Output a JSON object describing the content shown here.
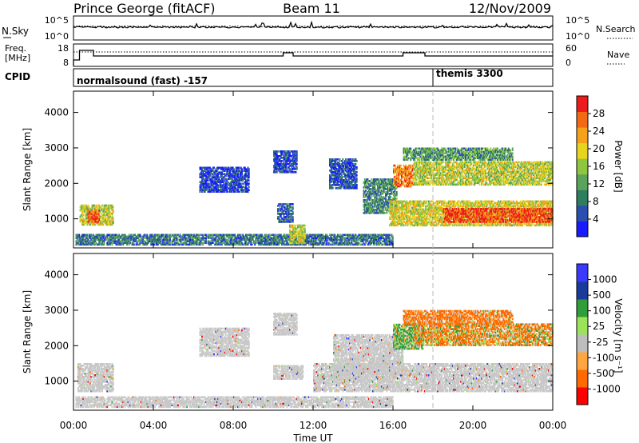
{
  "header": {
    "station": "Prince George (fitACF)",
    "beam": "Beam 11",
    "date": "12/Nov/2009"
  },
  "noise_panel": {
    "left_label": "N.Sky",
    "left_ticks": [
      "10^5",
      "10^0"
    ],
    "right_label": "N.Search",
    "right_ticks": [
      "10^5",
      "10^0"
    ]
  },
  "freq_panel": {
    "left_label_1": "Freq.",
    "left_label_2": "[MHz]",
    "left_ticks": [
      "18",
      "8"
    ],
    "right_label": "Nave",
    "right_ticks": [
      "60",
      "0"
    ]
  },
  "cpid_panel": {
    "label": "CPID",
    "modes": [
      {
        "name": "normalsound (fast) -157",
        "start_hour": 0
      },
      {
        "name": "themis 3300",
        "start_hour": 18
      }
    ]
  },
  "colors": {
    "scale": [
      "#1a1aff",
      "#2a4fb0",
      "#2e7d5f",
      "#5aa35a",
      "#8ec63f",
      "#e6d41e",
      "#f5a21a",
      "#f26a14",
      "#ee1b1b"
    ],
    "velocity": [
      "#ff0000",
      "#ff6a00",
      "#ffa640",
      "#bdbdbd",
      "#9be45a",
      "#2f9e3a",
      "#1a3a9c",
      "#3a3aff"
    ],
    "ground_scatter": "#c8c8c8"
  },
  "chart_data": [
    {
      "type": "heatmap",
      "title": "",
      "ylabel": "Slant Range [km]",
      "y_ticks": [
        "1000",
        "2000",
        "3000",
        "4000"
      ],
      "ylim": [
        180,
        4600
      ],
      "xlim_hours": [
        0,
        24
      ],
      "colorbar_label": "Power [dB]",
      "colorbar_ticks": [
        "4",
        "8",
        "12",
        "16",
        "20",
        "24",
        "28"
      ],
      "colorbar_range": [
        0,
        32
      ],
      "regions": [
        {
          "t0": 0.1,
          "t1": 16.0,
          "r0": 260,
          "r1": 560,
          "level": 0.25
        },
        {
          "t0": 0.3,
          "t1": 2.0,
          "r0": 820,
          "r1": 1400,
          "level": 0.55
        },
        {
          "t0": 0.7,
          "t1": 1.3,
          "r0": 900,
          "r1": 1250,
          "level": 0.85
        },
        {
          "t0": 6.3,
          "t1": 8.8,
          "r0": 1750,
          "r1": 2450,
          "level": 0.12
        },
        {
          "t0": 10.0,
          "t1": 11.2,
          "r0": 2300,
          "r1": 2900,
          "level": 0.15
        },
        {
          "t0": 10.2,
          "t1": 11.0,
          "r0": 900,
          "r1": 1400,
          "level": 0.2
        },
        {
          "t0": 10.8,
          "t1": 11.6,
          "r0": 300,
          "r1": 800,
          "level": 0.55
        },
        {
          "t0": 12.8,
          "t1": 14.2,
          "r0": 1850,
          "r1": 2700,
          "level": 0.15
        },
        {
          "t0": 14.5,
          "t1": 16.2,
          "r0": 1150,
          "r1": 2100,
          "level": 0.3
        },
        {
          "t0": 15.8,
          "t1": 24.0,
          "r0": 800,
          "r1": 1500,
          "level": 0.6
        },
        {
          "t0": 16.0,
          "t1": 17.0,
          "r0": 1900,
          "r1": 2500,
          "level": 0.8
        },
        {
          "t0": 17.0,
          "t1": 24.0,
          "r0": 1950,
          "r1": 2600,
          "level": 0.55
        },
        {
          "t0": 16.5,
          "t1": 22.0,
          "r0": 2650,
          "r1": 3000,
          "level": 0.35
        },
        {
          "t0": 18.5,
          "t1": 24.0,
          "r0": 900,
          "r1": 1300,
          "level": 0.9
        }
      ]
    },
    {
      "type": "heatmap",
      "title": "",
      "xlabel": "Time UT",
      "ylabel": "Slant Range [km]",
      "y_ticks": [
        "1000",
        "2000",
        "3000",
        "4000"
      ],
      "x_ticks": [
        "00:00",
        "04:00",
        "08:00",
        "12:00",
        "16:00",
        "20:00",
        "00:00"
      ],
      "ylim": [
        180,
        4600
      ],
      "xlim_hours": [
        0,
        24
      ],
      "colorbar_label": "Velocity [m s⁻¹]",
      "colorbar_ticks": [
        "1000",
        "500",
        "100",
        "25",
        "-25",
        "-100",
        "-500",
        "-1000"
      ],
      "colorbar_range": [
        -1000,
        1000
      ],
      "regions": [
        {
          "t0": 0.1,
          "t1": 16.0,
          "r0": 260,
          "r1": 560,
          "kind": "ground"
        },
        {
          "t0": 0.2,
          "t1": 2.0,
          "r0": 700,
          "r1": 1500,
          "kind": "ground"
        },
        {
          "t0": 6.3,
          "t1": 8.8,
          "r0": 1700,
          "r1": 2500,
          "kind": "ground"
        },
        {
          "t0": 10.0,
          "t1": 11.2,
          "r0": 2300,
          "r1": 2900,
          "kind": "ground"
        },
        {
          "t0": 10.0,
          "t1": 11.5,
          "r0": 1050,
          "r1": 1450,
          "kind": "ground"
        },
        {
          "t0": 12.0,
          "t1": 24.0,
          "r0": 700,
          "r1": 1500,
          "kind": "ground"
        },
        {
          "t0": 13.0,
          "t1": 16.5,
          "r0": 1200,
          "r1": 2300,
          "kind": "ground"
        },
        {
          "t0": 16.0,
          "t1": 17.5,
          "r0": 1900,
          "r1": 2600,
          "kind": "velocity",
          "vel": 150
        },
        {
          "t0": 17.0,
          "t1": 24.0,
          "r0": 2000,
          "r1": 2600,
          "kind": "velocity",
          "vel": -80
        },
        {
          "t0": 16.5,
          "t1": 22.0,
          "r0": 2600,
          "r1": 3000,
          "kind": "velocity",
          "vel": -200
        }
      ]
    }
  ]
}
